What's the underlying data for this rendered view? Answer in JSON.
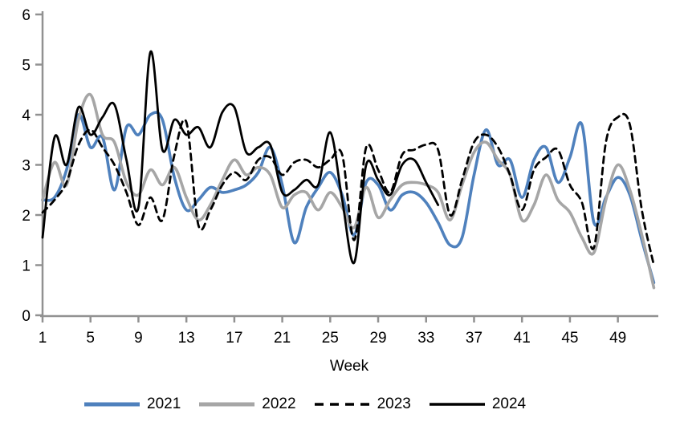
{
  "chart_data": {
    "type": "line",
    "title": "",
    "xlabel": "Week",
    "ylabel": "",
    "xlim": [
      1,
      52
    ],
    "ylim": [
      0,
      6
    ],
    "grid": false,
    "legend_position": "bottom",
    "axis_color": "#919191",
    "label_color": "#000000",
    "x_ticks": [
      "1",
      "5",
      "9",
      "13",
      "17",
      "21",
      "25",
      "29",
      "33",
      "37",
      "41",
      "45",
      "49"
    ],
    "x_tick_weeks": [
      1,
      5,
      9,
      13,
      17,
      21,
      25,
      29,
      33,
      37,
      41,
      45,
      49
    ],
    "y_ticks": [
      "0",
      "1",
      "2",
      "3",
      "4",
      "5",
      "6"
    ],
    "x_unit": "week index 1-52",
    "series": [
      {
        "name": "2021",
        "color": "#4f81bd",
        "style": "solid",
        "width": 3.6,
        "start_week": 1,
        "values": [
          2.3,
          2.35,
          2.9,
          4.0,
          3.35,
          3.55,
          2.5,
          3.75,
          3.6,
          4.0,
          3.9,
          2.75,
          2.1,
          2.3,
          2.55,
          2.45,
          2.5,
          2.6,
          2.85,
          3.35,
          2.6,
          1.45,
          2.15,
          2.55,
          2.85,
          2.4,
          1.6,
          2.65,
          2.6,
          2.1,
          2.4,
          2.45,
          2.25,
          1.85,
          1.4,
          1.55,
          2.8,
          3.7,
          3.0,
          3.1,
          2.35,
          3.1,
          3.35,
          2.65,
          3.15,
          3.8,
          1.85,
          2.35,
          2.75,
          2.4,
          1.5,
          0.65
        ]
      },
      {
        "name": "2022",
        "color": "#a6a6a6",
        "style": "solid",
        "width": 3.6,
        "start_week": 1,
        "values": [
          2.3,
          3.05,
          2.6,
          3.9,
          4.4,
          3.6,
          3.45,
          2.65,
          2.4,
          2.9,
          2.6,
          2.95,
          2.35,
          1.9,
          2.2,
          2.7,
          3.1,
          2.8,
          2.95,
          2.8,
          2.15,
          2.4,
          2.45,
          2.1,
          2.45,
          2.15,
          1.75,
          2.55,
          1.95,
          2.3,
          2.6,
          2.65,
          2.6,
          2.45,
          1.9,
          2.6,
          3.25,
          3.45,
          3.1,
          2.8,
          1.9,
          2.2,
          2.8,
          2.3,
          2.05,
          1.55,
          1.25,
          2.3,
          3.0,
          2.5,
          1.6,
          0.55
        ]
      },
      {
        "name": "2023",
        "color": "#000000",
        "style": "dashed",
        "width": 2.8,
        "start_week": 1,
        "values": [
          2.05,
          2.3,
          2.65,
          3.4,
          3.7,
          3.35,
          3.0,
          2.45,
          1.8,
          2.35,
          1.9,
          3.2,
          3.85,
          1.8,
          2.1,
          2.6,
          2.85,
          2.7,
          3.1,
          3.15,
          2.8,
          3.05,
          3.1,
          2.95,
          3.1,
          3.2,
          1.5,
          3.35,
          2.9,
          2.45,
          3.2,
          3.3,
          3.4,
          3.3,
          2.0,
          2.7,
          3.45,
          3.6,
          3.35,
          2.8,
          2.1,
          2.9,
          3.15,
          3.3,
          2.6,
          2.25,
          1.35,
          3.45,
          3.95,
          3.8,
          2.1,
          1.0
        ]
      },
      {
        "name": "2024",
        "color": "#000000",
        "style": "solid",
        "width": 2.8,
        "start_week": 1,
        "values": [
          1.55,
          3.55,
          3.0,
          4.15,
          3.6,
          3.95,
          4.2,
          3.1,
          2.15,
          5.25,
          3.3,
          3.9,
          3.6,
          3.75,
          3.35,
          4.05,
          4.15,
          3.25,
          3.35,
          3.4,
          2.45,
          2.5,
          2.7,
          2.6,
          3.65,
          2.3,
          1.05,
          3.0,
          2.7,
          2.4,
          3.0,
          3.1,
          2.65,
          2.2
        ]
      }
    ]
  },
  "legend": {
    "items": [
      "2021",
      "2022",
      "2023",
      "2024"
    ]
  }
}
